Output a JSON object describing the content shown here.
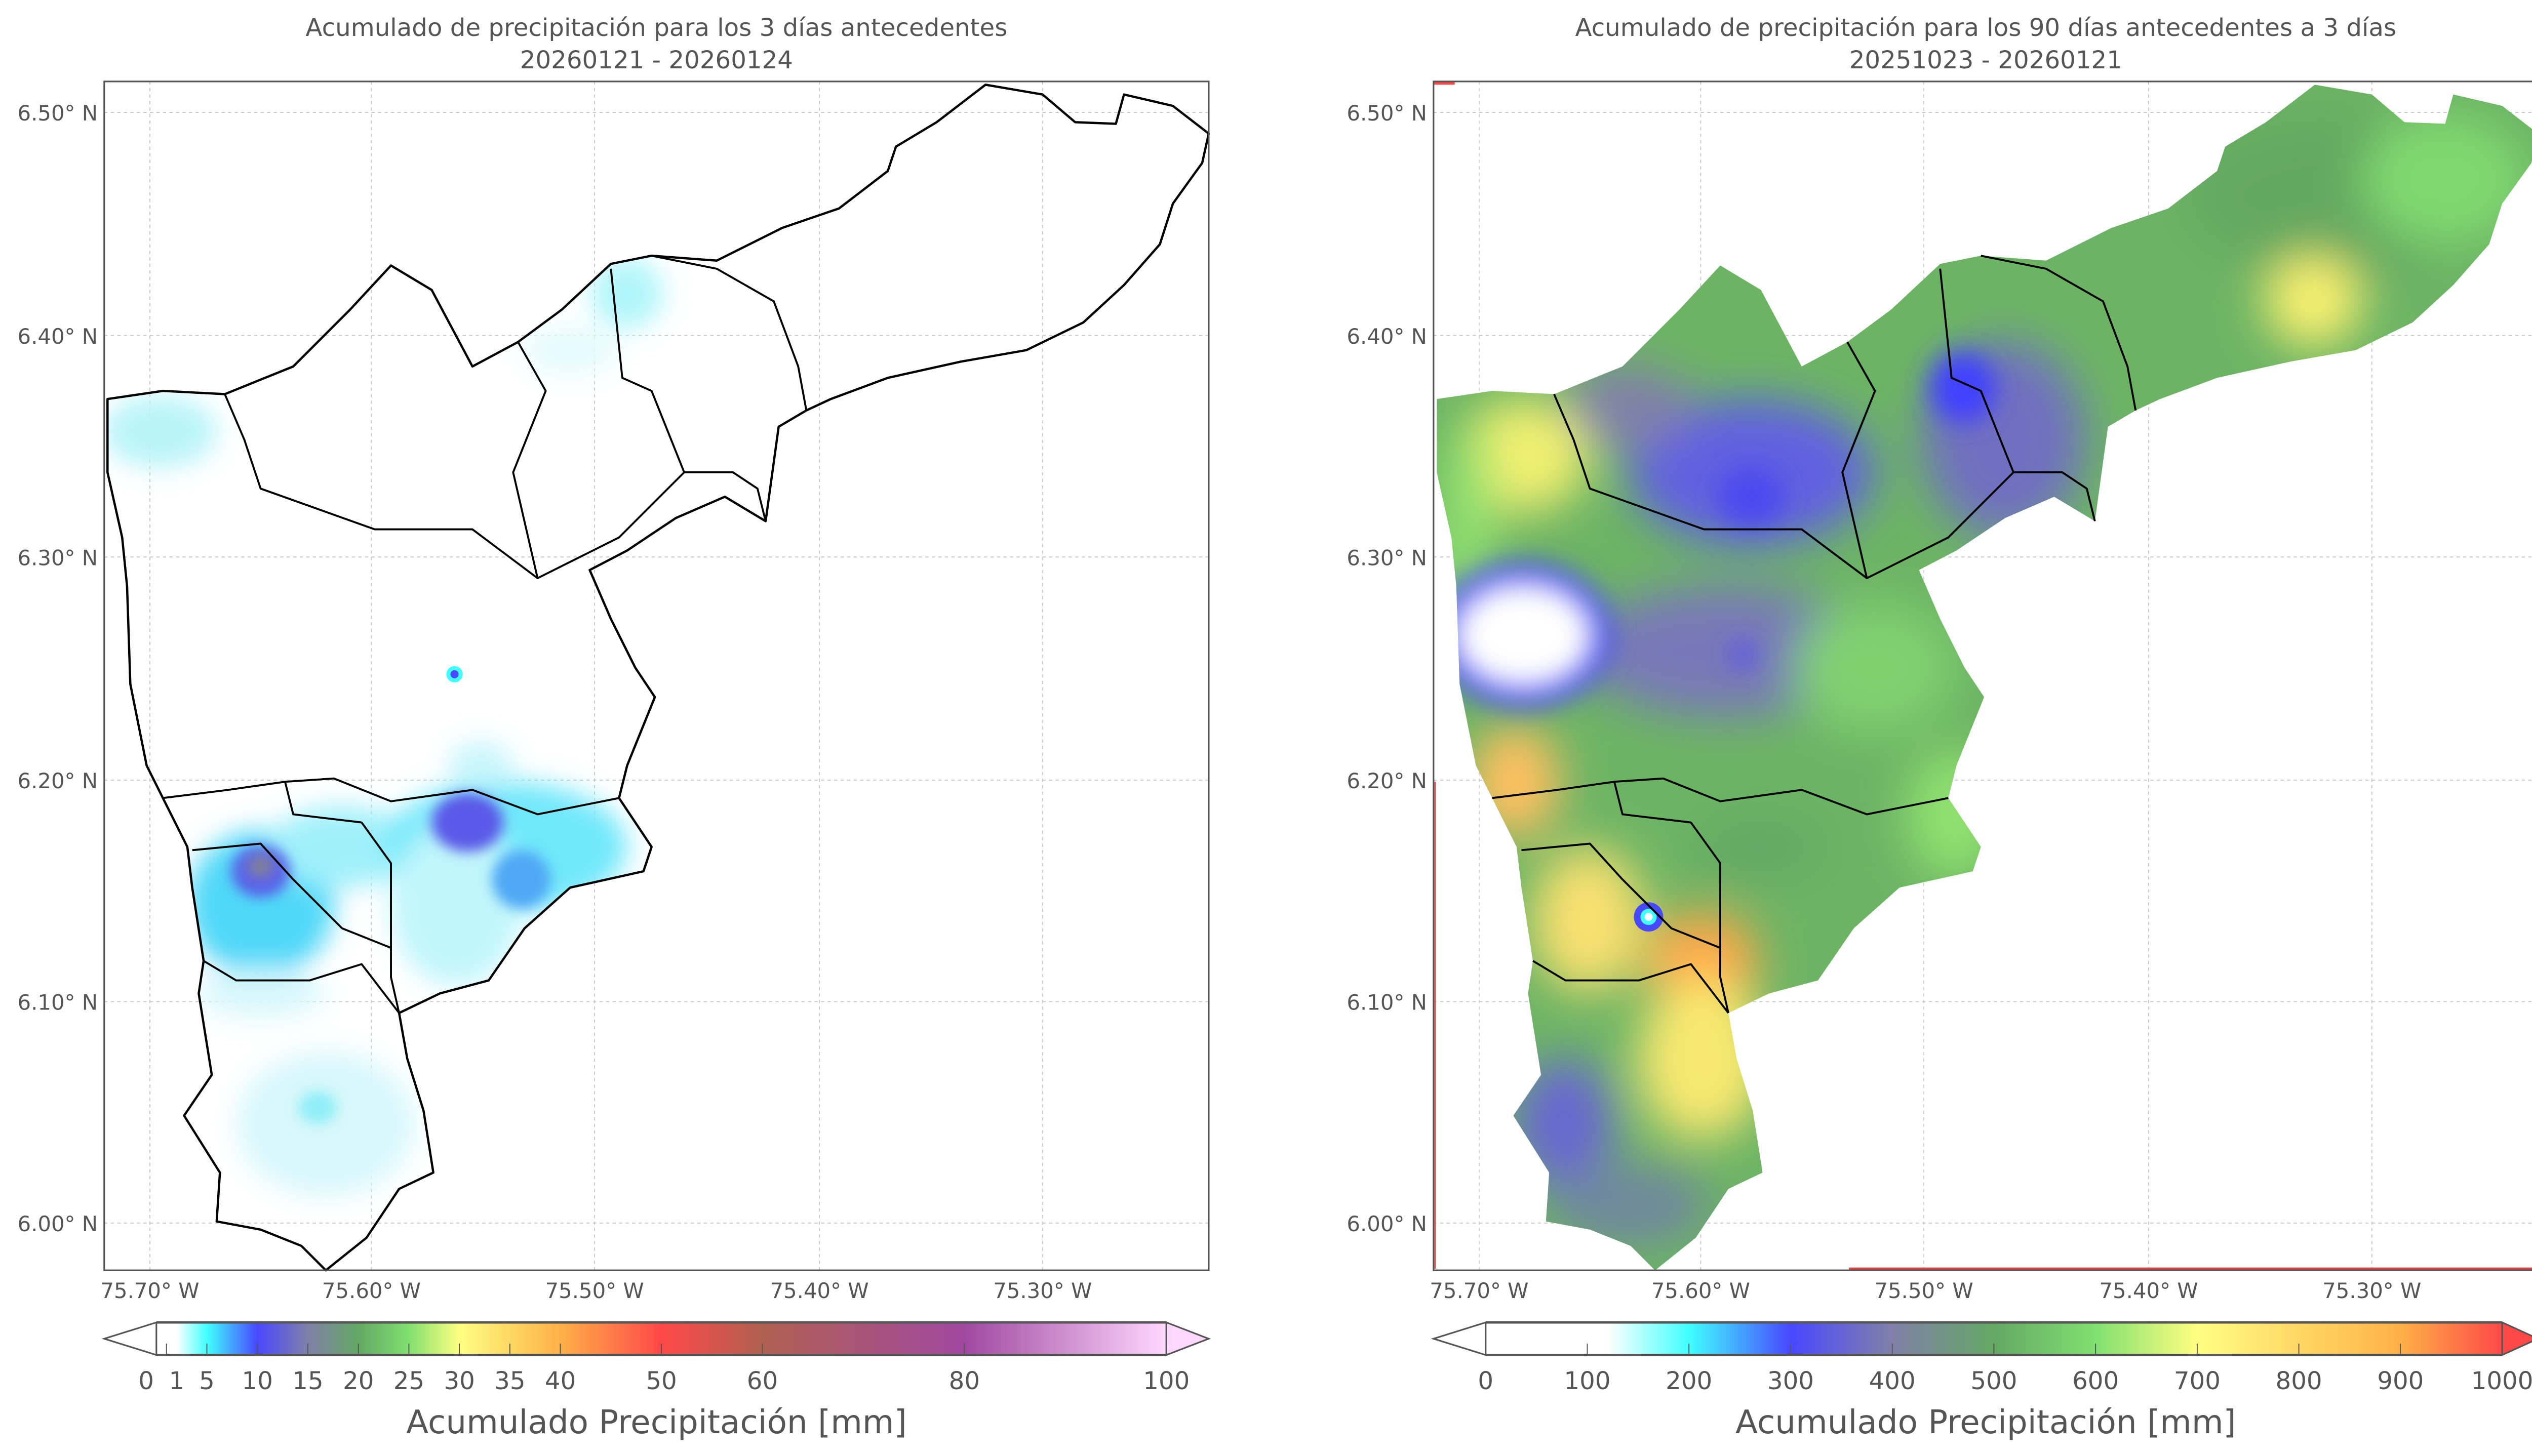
{
  "chart_data": [
    {
      "type": "heatmap",
      "title": "Acumulado de precipitación para los 3 días antecedentes",
      "subtitle": "20260121 - 20260124",
      "x_ticks": [
        "75.70° W",
        "75.60° W",
        "75.50° W",
        "75.40° W",
        "75.30° W"
      ],
      "y_ticks": [
        "6.50° N",
        "6.40° N",
        "6.30° N",
        "6.20° N",
        "6.10° N",
        "6.00° N"
      ],
      "grid": true,
      "colorbar": {
        "label": "Acumulado Precipitación [mm]",
        "range": [
          0,
          100
        ],
        "ticks": [
          0,
          1,
          5,
          10,
          15,
          20,
          25,
          30,
          35,
          40,
          50,
          60,
          80,
          100
        ],
        "tick_labels": [
          "0",
          "1",
          "5",
          "10",
          "15",
          "20",
          "25",
          "30",
          "35",
          "40",
          "50",
          "60",
          "80",
          "100"
        ],
        "extend": "both",
        "stops": [
          [
            0,
            "#ffffff"
          ],
          [
            2,
            "#ffffff"
          ],
          [
            5,
            "#40ffff"
          ],
          [
            10,
            "#4848ff"
          ],
          [
            15,
            "#8080a8"
          ],
          [
            20,
            "#64a864"
          ],
          [
            25,
            "#80e070"
          ],
          [
            30,
            "#ffff80"
          ],
          [
            40,
            "#ffb048"
          ],
          [
            50,
            "#ff4848"
          ],
          [
            60,
            "#b06050"
          ],
          [
            80,
            "#a048a0"
          ],
          [
            100,
            "#ffd8ff"
          ]
        ]
      },
      "hotspots_mm": [
        {
          "location": "75.65° W, 6.16° N",
          "value": 15
        },
        {
          "location": "75.56° W, 6.18° N",
          "value": 11
        },
        {
          "location": "75.56° W, 6.25° N",
          "value": 10
        }
      ]
    },
    {
      "type": "heatmap",
      "title": "Acumulado de precipitación para los 90 días antecedentes a 3 días",
      "subtitle": "20251023 - 20260121",
      "x_ticks": [
        "75.70° W",
        "75.60° W",
        "75.50° W",
        "75.40° W",
        "75.30° W"
      ],
      "y_ticks": [
        "6.50° N",
        "6.40° N",
        "6.30° N",
        "6.20° N",
        "6.10° N",
        "6.00° N"
      ],
      "grid": true,
      "colorbar": {
        "label": "Acumulado Precipitación [mm]",
        "range": [
          0,
          1000
        ],
        "ticks": [
          0,
          100,
          200,
          300,
          400,
          500,
          600,
          700,
          800,
          900,
          1000
        ],
        "tick_labels": [
          "0",
          "100",
          "200",
          "300",
          "400",
          "500",
          "600",
          "700",
          "800",
          "900",
          "1000"
        ],
        "extend": "both",
        "stops": [
          [
            0,
            "#ffffff"
          ],
          [
            120,
            "#ffffff"
          ],
          [
            200,
            "#40ffff"
          ],
          [
            300,
            "#4848ff"
          ],
          [
            400,
            "#8080a8"
          ],
          [
            500,
            "#64a864"
          ],
          [
            600,
            "#80e070"
          ],
          [
            700,
            "#ffff80"
          ],
          [
            900,
            "#ffb048"
          ],
          [
            1000,
            "#ff4848"
          ]
        ]
      }
    }
  ]
}
